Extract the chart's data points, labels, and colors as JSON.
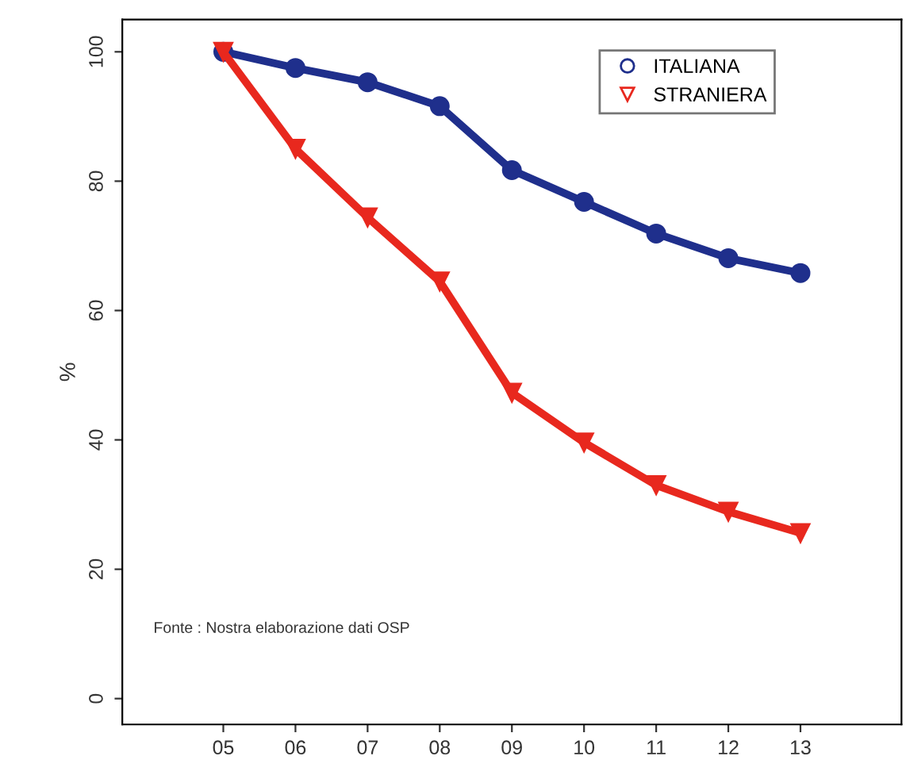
{
  "chart_data": {
    "type": "line",
    "ylabel": "%",
    "x": [
      5,
      6,
      7,
      8,
      9,
      10,
      11,
      12,
      13
    ],
    "series": [
      {
        "name": "ITALIANA",
        "color": "#1f2f8c",
        "marker": "circle",
        "values": [
          100,
          97.5,
          95.3,
          91.6,
          81.7,
          76.8,
          71.9,
          68.1,
          65.8
        ]
      },
      {
        "name": "STRANIERA",
        "color": "#e8281e",
        "marker": "triangle",
        "values": [
          100,
          85,
          74.4,
          64.5,
          47.3,
          39.6,
          33,
          28.9,
          25.6
        ]
      }
    ],
    "xlim": [
      3.6,
      14.4
    ],
    "ylim": [
      -4,
      105
    ],
    "xticks": [
      {
        "value": 5,
        "label": "05"
      },
      {
        "value": 6,
        "label": "06"
      },
      {
        "value": 7,
        "label": "07"
      },
      {
        "value": 8,
        "label": "08"
      },
      {
        "value": 9,
        "label": "09"
      },
      {
        "value": 10,
        "label": "10"
      },
      {
        "value": 11,
        "label": "11"
      },
      {
        "value": 12,
        "label": "12"
      },
      {
        "value": 13,
        "label": "13"
      }
    ],
    "yticks": [
      0,
      20,
      40,
      60,
      80,
      100
    ],
    "annotations": [
      "Fonte : Nostra elaborazione dati OSP"
    ],
    "legend": "top right",
    "grid": false
  }
}
